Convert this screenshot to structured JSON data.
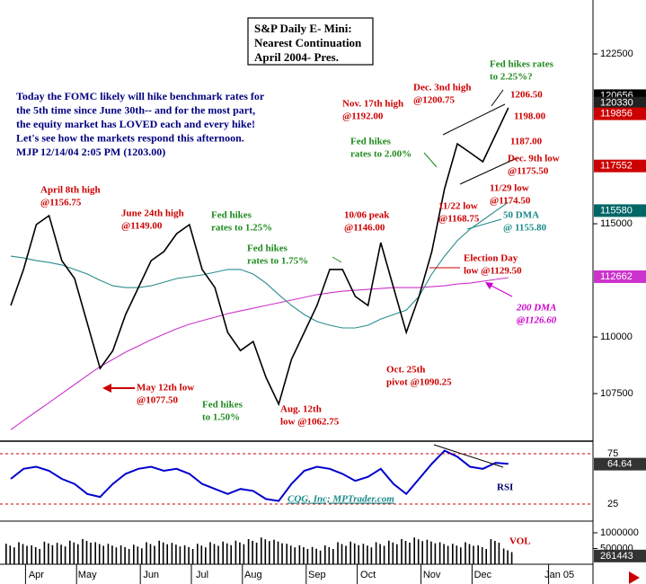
{
  "chart_data": {
    "type": "line",
    "title_lines": [
      "S&P Daily E- Mini:",
      "Nearest Continuation",
      "April 2004- Pres."
    ],
    "commentary": [
      "Today the FOMC likely will hike benchmark rates for",
      "the 5th time since June 30th-- and for the most part,",
      "the equity market has LOVED each and every hike!",
      "Let's see how the markets respond this afternoon.",
      "MJP  12/14/04  2:05 PM  (1203.00)"
    ],
    "categories": [
      null,
      null,
      "Apr",
      null,
      null,
      null,
      "May",
      null,
      null,
      null,
      null,
      "Jun",
      null,
      null,
      null,
      "Jul",
      null,
      null,
      null,
      "Aug",
      null,
      null,
      null,
      null,
      "Sep",
      null,
      null,
      null,
      "Oct",
      null,
      null,
      null,
      null,
      "Nov",
      null,
      null,
      null,
      "Dec",
      null,
      null,
      null,
      null,
      null,
      "Jan 05"
    ],
    "series": [
      {
        "color": "#000000",
        "values": [
          111390,
          112980,
          114960,
          115360,
          113370,
          112580,
          110600,
          108610,
          109400,
          110990,
          112180,
          113370,
          113770,
          114560,
          114960,
          112980,
          112180,
          110200,
          109400,
          109800,
          108220,
          107030,
          109010,
          110200,
          111390,
          112980,
          112980,
          111790,
          111390,
          114170,
          112180,
          110200,
          111790,
          113770,
          116550,
          118530,
          118140,
          117740,
          118930,
          120120,
          null,
          null,
          null,
          null
        ]
      },
      {
        "color": "#2a8c8c",
        "values": [
          113570,
          113490,
          113370,
          113290,
          113180,
          112980,
          112780,
          112500,
          112260,
          112180,
          112180,
          112260,
          112420,
          112580,
          112660,
          112740,
          112860,
          112980,
          112980,
          112780,
          112380,
          111870,
          111390,
          110990,
          110680,
          110520,
          110400,
          110400,
          110520,
          110790,
          110990,
          111190,
          111790,
          112780,
          113570,
          114250,
          114760,
          115160,
          115560,
          115950,
          null,
          null,
          null,
          null
        ]
      },
      {
        "color": "#cc33cc",
        "values": [
          105910,
          106310,
          106710,
          107100,
          107500,
          107900,
          108300,
          108690,
          109010,
          109330,
          109600,
          109880,
          110120,
          110360,
          110560,
          110720,
          110870,
          111030,
          111150,
          111270,
          111390,
          111510,
          111630,
          111750,
          111870,
          111950,
          112020,
          112060,
          112100,
          112140,
          112180,
          112180,
          112180,
          112220,
          112260,
          112340,
          112380,
          112460,
          112540,
          112620,
          null,
          null,
          null,
          null
        ]
      }
    ],
    "ylim": [
      105440,
      124880
    ],
    "yticks": [
      107500,
      110000,
      115000,
      122500
    ],
    "price_markers": [
      {
        "value": 120656,
        "color": "#000000"
      },
      {
        "value": 120330,
        "color": "#222222"
      },
      {
        "value": 119856,
        "color": "#cc0000"
      },
      {
        "value": 117552,
        "color": "#cc0000"
      },
      {
        "value": 115580,
        "color": "#006666"
      },
      {
        "value": 112662,
        "color": "#cc33cc"
      }
    ],
    "annotations": [
      {
        "lines": [
          "April 8th high",
          "@1156.75"
        ],
        "color": "#cc0000"
      },
      {
        "lines": [
          "June 24th high",
          "@1149.00"
        ],
        "color": "#cc0000"
      },
      {
        "lines": [
          "Fed hikes",
          "rates to 1.25%"
        ],
        "color": "#1e8a1e"
      },
      {
        "lines": [
          "Fed hikes",
          "rates to 1.75%"
        ],
        "color": "#1e8a1e"
      },
      {
        "lines": [
          "10/06 peak",
          "@1146.00"
        ],
        "color": "#cc0000"
      },
      {
        "lines": [
          "Nov. 17th high",
          "@1192.00"
        ],
        "color": "#cc0000"
      },
      {
        "lines": [
          "Dec. 3nd high",
          "@1200.75"
        ],
        "color": "#cc0000"
      },
      {
        "lines": [
          "Fed hikes rates",
          "to 2.25%?"
        ],
        "color": "#1e8a1e"
      },
      {
        "lines": [
          "1206.50"
        ],
        "color": "#cc0000"
      },
      {
        "lines": [
          "1198.00"
        ],
        "color": "#cc0000"
      },
      {
        "lines": [
          "1187.00"
        ],
        "color": "#cc0000"
      },
      {
        "lines": [
          "Dec. 9th low",
          "@1175.50"
        ],
        "color": "#cc0000"
      },
      {
        "lines": [
          "11/29 low",
          "@1174.50"
        ],
        "color": "#cc0000"
      },
      {
        "lines": [
          "11/22 low",
          "@1168.75"
        ],
        "color": "#cc0000"
      },
      {
        "lines": [
          "Fed hikes",
          "rates to 2.00%"
        ],
        "color": "#1e8a1e"
      },
      {
        "lines": [
          "50 DMA",
          "@ 1155.80"
        ],
        "color": "#1a8a8a"
      },
      {
        "lines": [
          "Election Day",
          "low @1129.50"
        ],
        "color": "#cc0000"
      },
      {
        "lines": [
          "200 DMA",
          "@1126.60"
        ],
        "color": "#cc00cc"
      },
      {
        "lines": [
          "May 12th low",
          "@1077.50"
        ],
        "color": "#cc0000"
      },
      {
        "lines": [
          "Fed hikes",
          "to 1.50%"
        ],
        "color": "#1e8a1e"
      },
      {
        "lines": [
          "Aug. 12th",
          "low @1062.75"
        ],
        "color": "#cc0000"
      },
      {
        "lines": [
          "Oct. 25th",
          "pivot @1090.25"
        ],
        "color": "#cc0000"
      }
    ],
    "rsi": {
      "label": "RSI",
      "color": "#0000cc",
      "ylim": [
        9.8,
        86.6
      ],
      "yticks": [
        25,
        75
      ],
      "marker": 64.64,
      "values": [
        50,
        60,
        62,
        58,
        50,
        45,
        35,
        32,
        45,
        55,
        60,
        62,
        58,
        60,
        55,
        45,
        40,
        35,
        40,
        38,
        30,
        28,
        45,
        58,
        62,
        60,
        55,
        48,
        52,
        60,
        45,
        35,
        50,
        65,
        78,
        72,
        62,
        60,
        66,
        65,
        null,
        null,
        null,
        null
      ]
    },
    "volume": {
      "label": "VOL",
      "ylim": [
        0,
        1371000
      ],
      "yticks": [
        500000,
        1000000
      ],
      "marker": 261443,
      "values": [
        650000,
        700000,
        600000,
        720000,
        680000,
        750000,
        800000,
        700000,
        650000,
        600000,
        620000,
        700000,
        750000,
        680000,
        600000,
        650000,
        700000,
        720000,
        750000,
        800000,
        850000,
        780000,
        650000,
        600000,
        550000,
        600000,
        700000,
        720000,
        650000,
        700000,
        750000,
        800000,
        850000,
        780000,
        700000,
        650000,
        700000,
        600000,
        800000,
        500000,
        null,
        null,
        null,
        null
      ]
    },
    "credit": "CQG, Inc; MPTrader.com"
  }
}
